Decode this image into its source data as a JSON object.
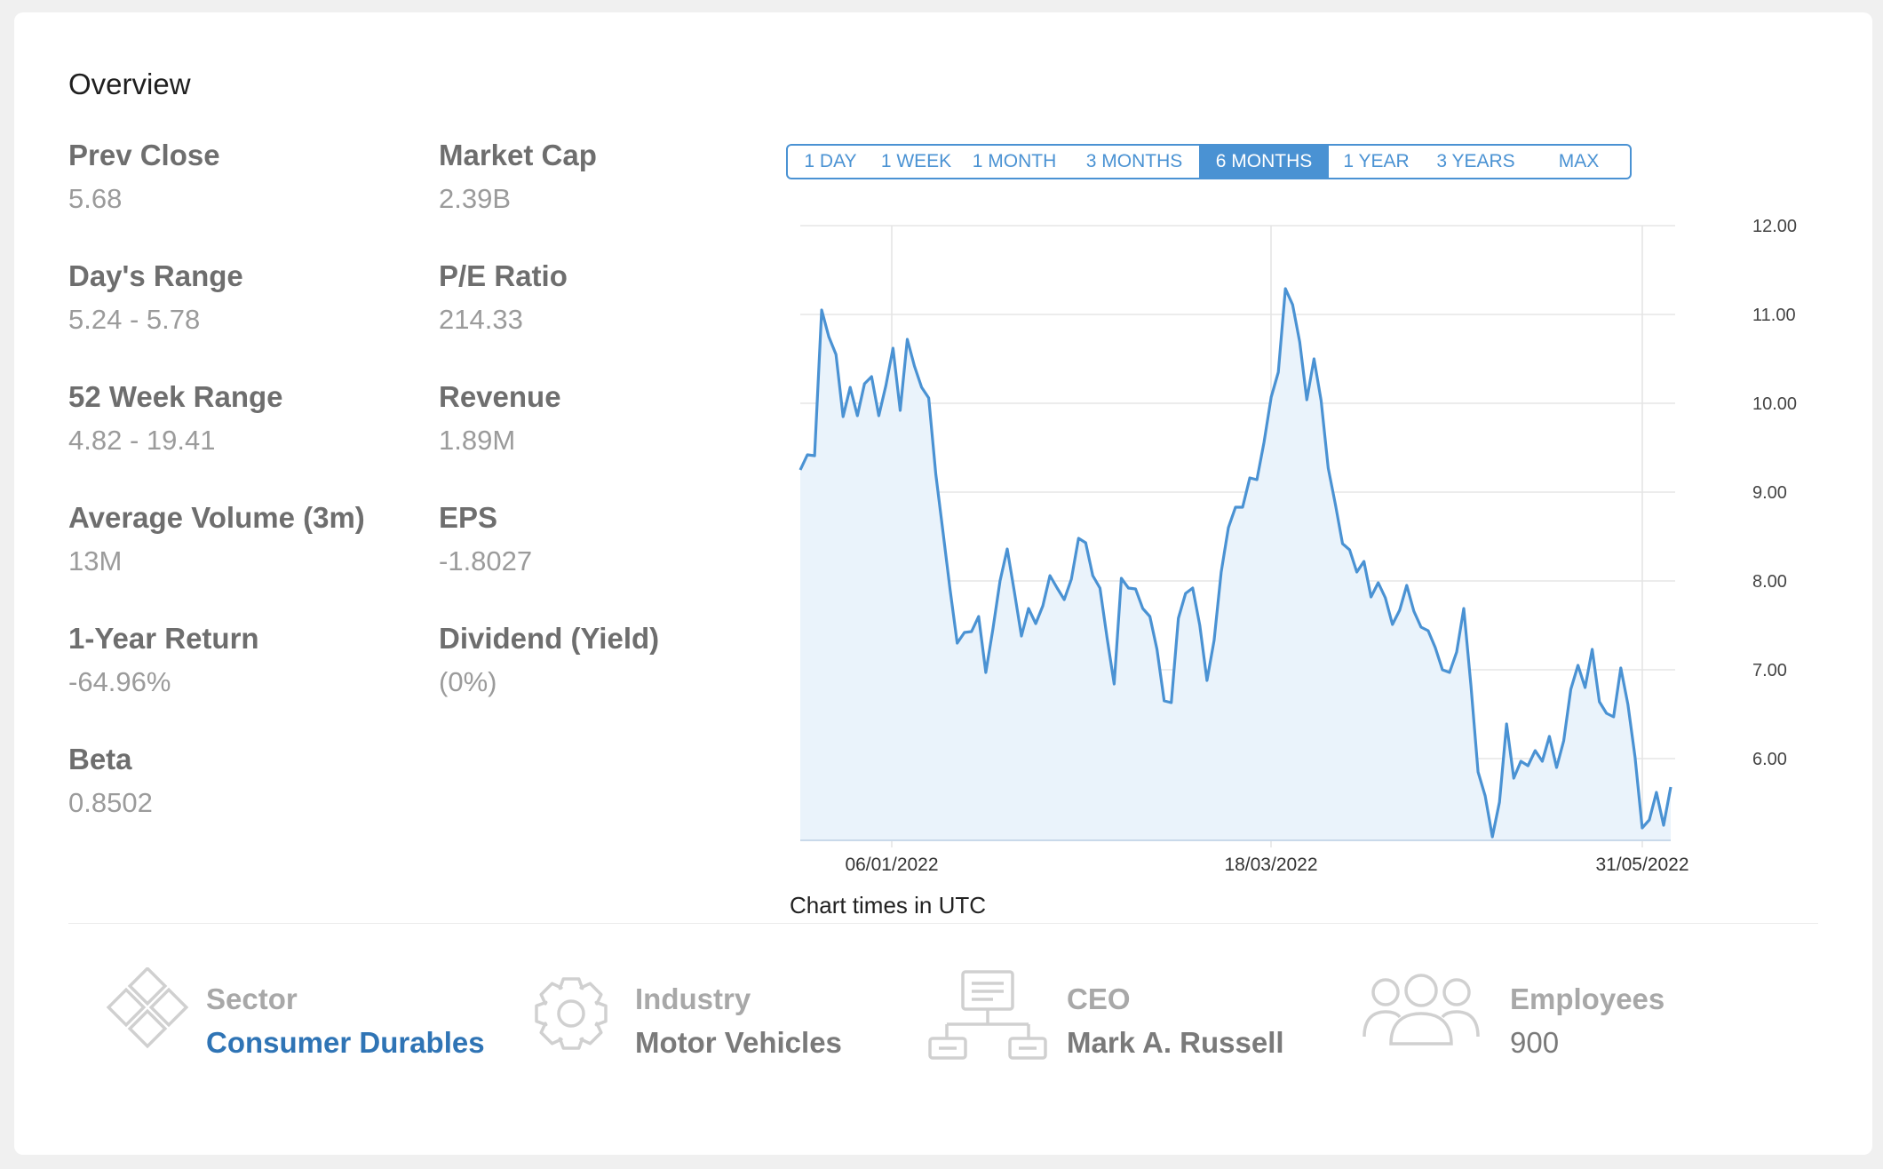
{
  "overview": {
    "title": "Overview"
  },
  "stats": [
    {
      "label": "Prev Close",
      "value": "5.68"
    },
    {
      "label": "Market Cap",
      "value": "2.39B"
    },
    {
      "label": "Day's Range",
      "value": "5.24 - 5.78"
    },
    {
      "label": "P/E Ratio",
      "value": "214.33"
    },
    {
      "label": "52 Week Range",
      "value": "4.82 - 19.41"
    },
    {
      "label": "Revenue",
      "value": "1.89M"
    },
    {
      "label": "Average Volume (3m)",
      "value": "13M"
    },
    {
      "label": "EPS",
      "value": "-1.8027"
    },
    {
      "label": "1-Year Return",
      "value": "-64.96%"
    },
    {
      "label": "Dividend (Yield)",
      "value": "(0%)"
    },
    {
      "label": "Beta",
      "value": "0.8502"
    }
  ],
  "ranges": {
    "options": [
      "1 DAY",
      "1 WEEK",
      "1 MONTH",
      "3 MONTHS",
      "6 MONTHS",
      "1 YEAR",
      "3 YEARS",
      "MAX"
    ],
    "selected": "6 MONTHS"
  },
  "chart_note": "Chart times in UTC",
  "chart_data": {
    "type": "area",
    "x_tick_labels": [
      "06/01/2022",
      "18/03/2022",
      "31/05/2022"
    ],
    "y_tick_labels": [
      "12.00",
      "11.00",
      "10.00",
      "9.00",
      "8.00",
      "7.00",
      "6.00"
    ],
    "ylim": [
      5.12,
      12.0
    ],
    "grid": true,
    "line_color": "#4a92d3",
    "fill_color": "#eaf3fb",
    "values": [
      9.25,
      9.42,
      9.41,
      11.05,
      10.75,
      10.55,
      9.85,
      10.18,
      9.86,
      10.22,
      10.3,
      9.86,
      10.2,
      10.62,
      9.92,
      10.72,
      10.42,
      10.18,
      10.06,
      9.2,
      8.55,
      7.9,
      7.3,
      7.42,
      7.43,
      7.6,
      6.97,
      7.46,
      8.0,
      8.36,
      7.88,
      7.38,
      7.69,
      7.52,
      7.72,
      8.06,
      7.92,
      7.79,
      8.02,
      8.48,
      8.43,
      8.06,
      7.92,
      7.36,
      6.84,
      8.03,
      7.92,
      7.91,
      7.69,
      7.6,
      7.23,
      6.65,
      6.63,
      7.58,
      7.86,
      7.92,
      7.5,
      6.88,
      7.33,
      8.1,
      8.6,
      8.83,
      8.83,
      9.16,
      9.14,
      9.56,
      10.07,
      10.35,
      11.29,
      11.11,
      10.69,
      10.04,
      10.5,
      10.03,
      9.27,
      8.86,
      8.42,
      8.35,
      8.1,
      8.22,
      7.82,
      7.98,
      7.81,
      7.51,
      7.67,
      7.95,
      7.66,
      7.48,
      7.44,
      7.25,
      7.0,
      6.97,
      7.2,
      7.69,
      6.82,
      5.85,
      5.58,
      5.12,
      5.51,
      6.39,
      5.78,
      5.97,
      5.92,
      6.09,
      5.97,
      6.25,
      5.9,
      6.2,
      6.78,
      7.05,
      6.8,
      7.23,
      6.64,
      6.51,
      6.47,
      7.02,
      6.61,
      6.02,
      5.22,
      5.31,
      5.62,
      5.25,
      5.68
    ]
  },
  "info": [
    {
      "label": "Sector",
      "value": "Consumer Durables",
      "icon": "diamonds-icon"
    },
    {
      "label": "Industry",
      "value": "Motor Vehicles",
      "icon": "gear-icon"
    },
    {
      "label": "CEO",
      "value": "Mark A. Russell",
      "icon": "org-chart-icon"
    },
    {
      "label": "Employees",
      "value": "900",
      "icon": "people-icon"
    }
  ]
}
